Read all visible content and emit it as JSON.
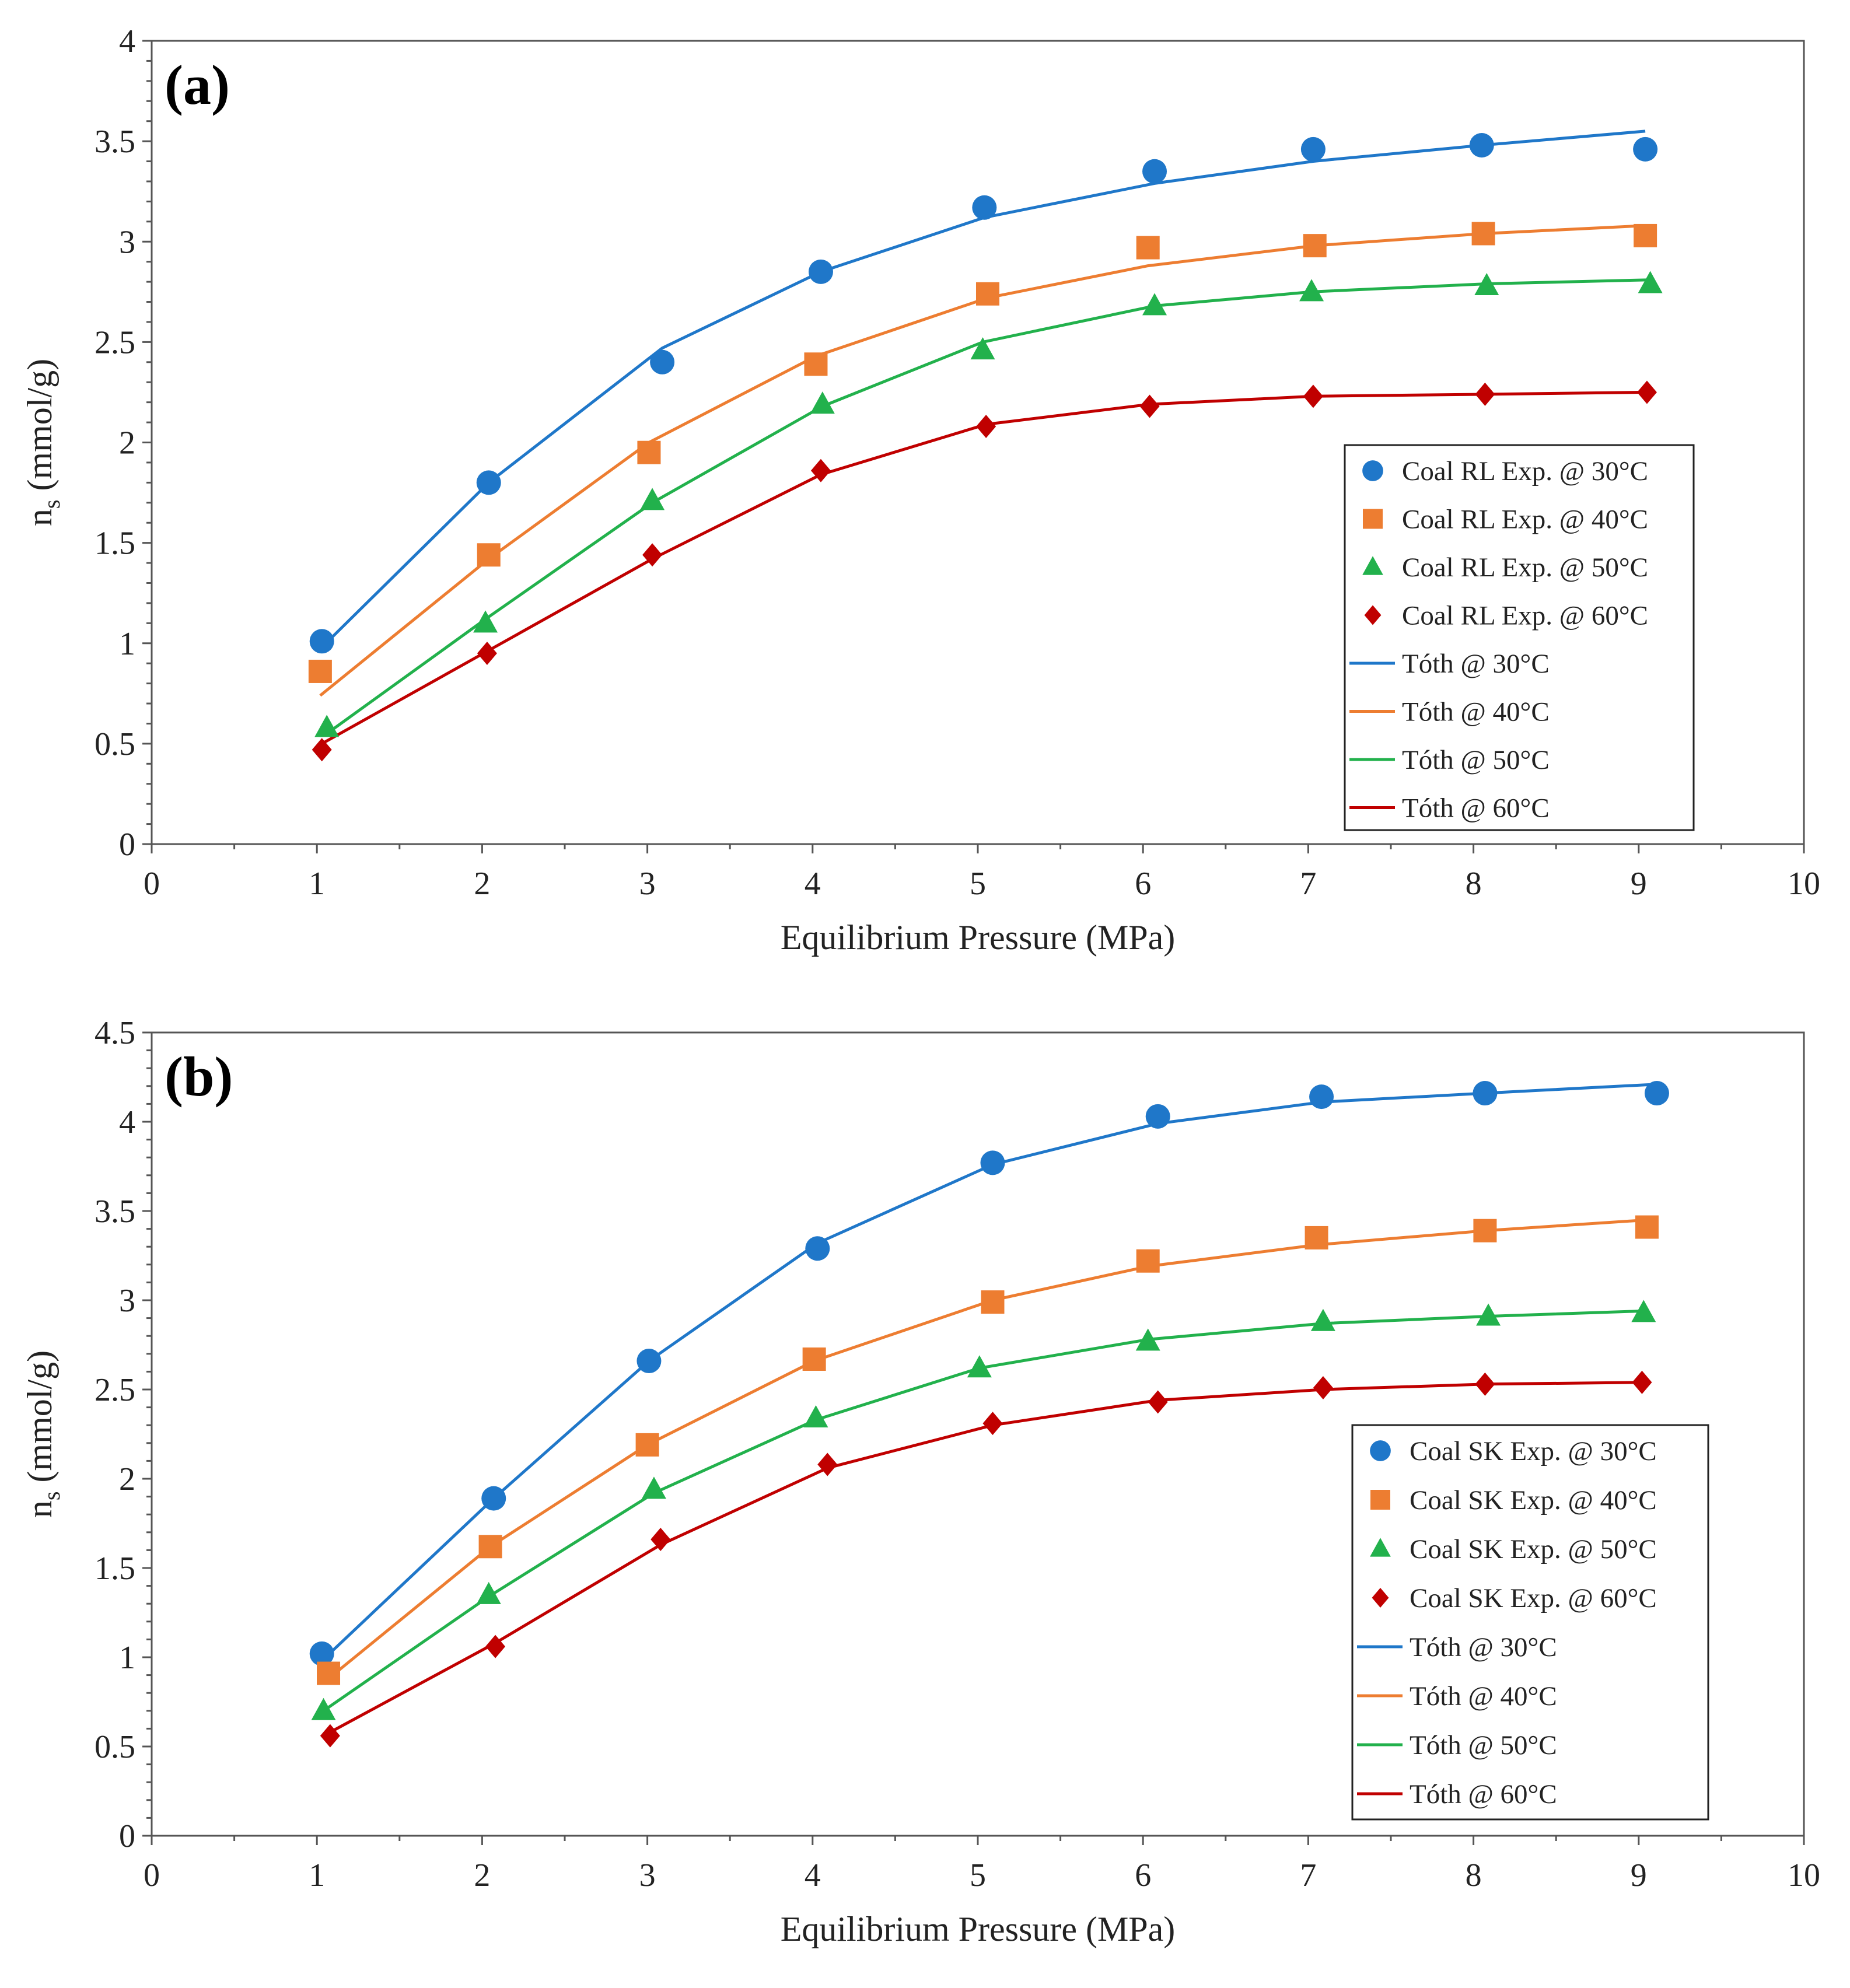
{
  "chart_data": [
    {
      "type": "scatter",
      "panel_label": "(a)",
      "xlabel": "Equilibrium Pressure (MPa)",
      "ylabel_main": "n",
      "ylabel_sub": "s",
      "ylabel_units": " (mmol/g)",
      "xlim": [
        0,
        10
      ],
      "ylim": [
        0,
        4
      ],
      "xticks": [
        "0",
        "1",
        "2",
        "3",
        "4",
        "5",
        "6",
        "7",
        "8",
        "9",
        "10"
      ],
      "yticks": [
        "0",
        "0.5",
        "1",
        "1.5",
        "2",
        "2.5",
        "3",
        "3.5",
        "4"
      ],
      "legend_position": "lower-right",
      "series": [
        {
          "name": "Coal RL Exp. @ 30°C",
          "kind": "marker",
          "marker": "circle",
          "color": "#1F77C9",
          "x": [
            1.03,
            2.04,
            3.09,
            4.05,
            5.04,
            6.07,
            7.03,
            8.05,
            9.04
          ],
          "y": [
            1.01,
            1.8,
            2.4,
            2.85,
            3.17,
            3.35,
            3.46,
            3.48,
            3.46
          ]
        },
        {
          "name": "Coal RL Exp. @ 40°C",
          "kind": "marker",
          "marker": "square",
          "color": "#ED7D31",
          "x": [
            1.02,
            2.04,
            3.01,
            4.02,
            5.06,
            6.03,
            7.04,
            8.06,
            9.04
          ],
          "y": [
            0.86,
            1.44,
            1.95,
            2.39,
            2.74,
            2.97,
            2.98,
            3.04,
            3.03
          ]
        },
        {
          "name": "Coal RL Exp. @ 50°C",
          "kind": "marker",
          "marker": "triangle",
          "color": "#22B14C",
          "x": [
            1.06,
            2.02,
            3.03,
            4.06,
            5.03,
            6.07,
            7.02,
            8.08,
            9.07
          ],
          "y": [
            0.58,
            1.1,
            1.71,
            2.19,
            2.46,
            2.68,
            2.75,
            2.78,
            2.79
          ]
        },
        {
          "name": "Coal RL Exp. @ 60°C",
          "kind": "marker",
          "marker": "diamond",
          "color": "#C00000",
          "x": [
            1.03,
            2.03,
            3.03,
            4.05,
            5.05,
            6.04,
            7.03,
            8.07,
            9.05
          ],
          "y": [
            0.47,
            0.95,
            1.44,
            1.86,
            2.08,
            2.18,
            2.23,
            2.24,
            2.25
          ]
        },
        {
          "name": "Tóth @ 30°C",
          "kind": "line",
          "color": "#1F77C9",
          "x": [
            1.03,
            2.04,
            3.09,
            4.05,
            5.04,
            6.07,
            7.03,
            8.05,
            9.04
          ],
          "y": [
            0.98,
            1.8,
            2.47,
            2.85,
            3.12,
            3.29,
            3.4,
            3.48,
            3.55
          ]
        },
        {
          "name": "Tóth @ 40°C",
          "kind": "line",
          "color": "#ED7D31",
          "x": [
            1.02,
            2.04,
            3.01,
            4.02,
            5.06,
            6.03,
            7.04,
            8.06,
            9.04
          ],
          "y": [
            0.74,
            1.42,
            2.0,
            2.43,
            2.72,
            2.88,
            2.98,
            3.04,
            3.08
          ]
        },
        {
          "name": "Tóth @ 50°C",
          "kind": "line",
          "color": "#22B14C",
          "x": [
            1.06,
            2.02,
            3.03,
            4.06,
            5.03,
            6.07,
            7.02,
            8.08,
            9.07
          ],
          "y": [
            0.55,
            1.12,
            1.7,
            2.18,
            2.5,
            2.68,
            2.75,
            2.79,
            2.81
          ]
        },
        {
          "name": "Tóth @ 60°C",
          "kind": "line",
          "color": "#C00000",
          "x": [
            1.03,
            2.03,
            3.03,
            4.05,
            5.05,
            6.04,
            7.03,
            8.07,
            9.05
          ],
          "y": [
            0.5,
            0.96,
            1.42,
            1.84,
            2.09,
            2.19,
            2.23,
            2.24,
            2.25
          ]
        }
      ]
    },
    {
      "type": "scatter",
      "panel_label": "(b)",
      "xlabel": "Equilibrium Pressure (MPa)",
      "ylabel_main": "n",
      "ylabel_sub": "s",
      "ylabel_units": " (mmol/g)",
      "xlim": [
        0,
        10
      ],
      "ylim": [
        0,
        4.5
      ],
      "xticks": [
        "0",
        "1",
        "2",
        "3",
        "4",
        "5",
        "6",
        "7",
        "8",
        "9",
        "10"
      ],
      "yticks": [
        "0",
        "0.5",
        "1",
        "1.5",
        "2",
        "2.5",
        "3",
        "3.5",
        "4",
        "4.5"
      ],
      "legend_position": "lower-right",
      "series": [
        {
          "name": "Coal SK Exp. @ 30°C",
          "kind": "marker",
          "marker": "circle",
          "color": "#1F77C9",
          "x": [
            1.03,
            2.07,
            3.01,
            4.03,
            5.09,
            6.09,
            7.08,
            8.07,
            9.11
          ],
          "y": [
            1.02,
            1.89,
            2.66,
            3.29,
            3.77,
            4.03,
            4.14,
            4.16,
            4.16
          ]
        },
        {
          "name": "Coal SK Exp. @ 40°C",
          "kind": "marker",
          "marker": "square",
          "color": "#ED7D31",
          "x": [
            1.07,
            2.05,
            3.0,
            4.01,
            5.09,
            6.03,
            7.05,
            8.07,
            9.05
          ],
          "y": [
            0.91,
            1.62,
            2.19,
            2.67,
            2.99,
            3.22,
            3.35,
            3.39,
            3.41
          ]
        },
        {
          "name": "Coal SK Exp. @ 50°C",
          "kind": "marker",
          "marker": "triangle",
          "color": "#22B14C",
          "x": [
            1.04,
            2.04,
            3.04,
            4.02,
            5.01,
            6.03,
            7.09,
            8.09,
            9.03
          ],
          "y": [
            0.7,
            1.35,
            1.94,
            2.34,
            2.62,
            2.77,
            2.88,
            2.91,
            2.93
          ]
        },
        {
          "name": "Coal SK Exp. @ 60°C",
          "kind": "marker",
          "marker": "diamond",
          "color": "#C00000",
          "x": [
            1.08,
            2.08,
            3.08,
            4.09,
            5.09,
            6.09,
            7.09,
            8.07,
            9.02
          ],
          "y": [
            0.56,
            1.06,
            1.66,
            2.08,
            2.31,
            2.43,
            2.51,
            2.53,
            2.54
          ]
        },
        {
          "name": "Tóth @ 30°C",
          "kind": "line",
          "color": "#1F77C9",
          "x": [
            1.03,
            2.07,
            3.01,
            4.03,
            5.09,
            6.09,
            7.08,
            8.07,
            9.11
          ],
          "y": [
            0.98,
            1.89,
            2.66,
            3.32,
            3.76,
            3.99,
            4.11,
            4.16,
            4.21
          ]
        },
        {
          "name": "Tóth @ 40°C",
          "kind": "line",
          "color": "#ED7D31",
          "x": [
            1.07,
            2.05,
            3.0,
            4.01,
            5.09,
            6.03,
            7.05,
            8.07,
            9.05
          ],
          "y": [
            0.88,
            1.62,
            2.19,
            2.66,
            3.0,
            3.19,
            3.31,
            3.39,
            3.45
          ]
        },
        {
          "name": "Tóth @ 50°C",
          "kind": "line",
          "color": "#22B14C",
          "x": [
            1.04,
            2.04,
            3.04,
            4.02,
            5.01,
            6.03,
            7.09,
            8.09,
            9.03
          ],
          "y": [
            0.7,
            1.34,
            1.92,
            2.33,
            2.62,
            2.78,
            2.87,
            2.91,
            2.94
          ]
        },
        {
          "name": "Tóth @ 60°C",
          "kind": "line",
          "color": "#C00000",
          "x": [
            1.08,
            2.08,
            3.08,
            4.09,
            5.09,
            6.09,
            7.09,
            8.07,
            9.02
          ],
          "y": [
            0.58,
            1.08,
            1.63,
            2.06,
            2.3,
            2.44,
            2.5,
            2.53,
            2.54
          ]
        }
      ]
    }
  ]
}
